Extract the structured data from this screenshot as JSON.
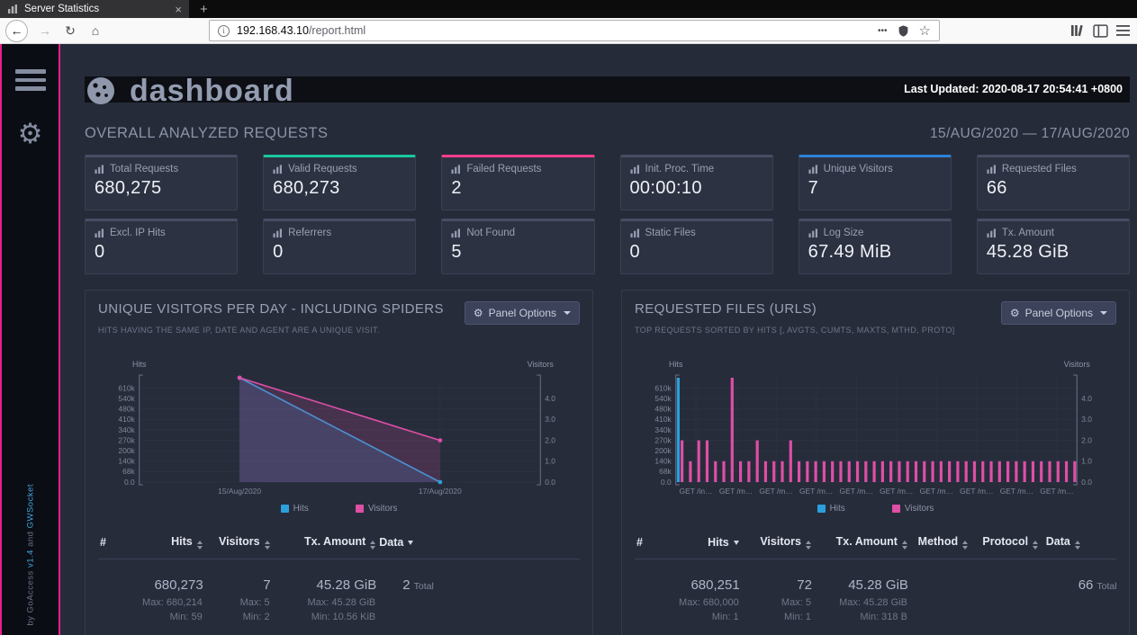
{
  "browser": {
    "tab": {
      "title": "Server Statistics",
      "close": "×",
      "new_tab": "+"
    },
    "nav": {
      "back": "←",
      "forward": "→",
      "reload": "↻",
      "home": "⌂",
      "url_host": "192.168.43.10",
      "url_path": "/report.html",
      "page_actions": "•••",
      "star": "☆"
    }
  },
  "sidebar": {
    "credit_prefix": "by GoAccess ",
    "credit_version": "v1.4",
    "credit_and": " and ",
    "credit_socket": "GWSocket"
  },
  "header": {
    "title": "dashboard",
    "last_updated": "Last Updated: 2020-08-17 20:54:41 +0800"
  },
  "overview": {
    "title": "OVERALL ANALYZED REQUESTS",
    "date_range": "15/AUG/2020 — 17/AUG/2020",
    "cards": [
      {
        "label": "Total Requests",
        "value": "680,275",
        "accent": ""
      },
      {
        "label": "Valid Requests",
        "value": "680,273",
        "accent": "#17c7a0"
      },
      {
        "label": "Failed Requests",
        "value": "2",
        "accent": "#f53d8f"
      },
      {
        "label": "Init. Proc. Time",
        "value": "00:00:10",
        "accent": ""
      },
      {
        "label": "Unique Visitors",
        "value": "7",
        "accent": "#2d82d8"
      },
      {
        "label": "Requested Files",
        "value": "66",
        "accent": ""
      },
      {
        "label": "Excl. IP Hits",
        "value": "0",
        "accent": ""
      },
      {
        "label": "Referrers",
        "value": "0",
        "accent": ""
      },
      {
        "label": "Not Found",
        "value": "5",
        "accent": ""
      },
      {
        "label": "Static Files",
        "value": "0",
        "accent": ""
      },
      {
        "label": "Log Size",
        "value": "67.49 MiB",
        "accent": ""
      },
      {
        "label": "Tx. Amount",
        "value": "45.28 GiB",
        "accent": ""
      }
    ]
  },
  "panels": {
    "visitors": {
      "title": "UNIQUE VISITORS PER DAY - INCLUDING SPIDERS",
      "subtitle": "HITS HAVING THE SAME IP, DATE AND AGENT ARE A UNIQUE VISIT.",
      "options_label": "Panel Options",
      "legend": [
        "Hits",
        "Visitors"
      ],
      "table": {
        "col_hash": "#",
        "col_hits": "Hits",
        "col_visitors": "Visitors",
        "col_tx": "Tx. Amount",
        "col_data": "Data",
        "footer": {
          "hits": "680,273",
          "visitors": "7",
          "tx": "45.28 GiB",
          "count": "2",
          "total": "Total"
        },
        "max": {
          "hits": "Max: 680,214",
          "visitors": "Max: 5",
          "tx": "Max: 45.28 GiB"
        },
        "min": {
          "hits": "Min: 59",
          "visitors": "Min: 2",
          "tx": "Min: 10.56 KiB"
        }
      }
    },
    "requests": {
      "title": "REQUESTED FILES (URLS)",
      "subtitle": "TOP REQUESTS SORTED BY HITS [, AVGTS, CUMTS, MAXTS, MTHD, PROTO]",
      "options_label": "Panel Options",
      "legend": [
        "Hits",
        "Visitors"
      ],
      "table": {
        "col_hash": "#",
        "col_hits": "Hits",
        "col_visitors": "Visitors",
        "col_tx": "Tx. Amount",
        "col_method": "Method",
        "col_protocol": "Protocol",
        "col_data": "Data",
        "footer": {
          "hits": "680,251",
          "visitors": "72",
          "tx": "45.28 GiB",
          "count": "66",
          "total": "Total"
        },
        "max": {
          "hits": "Max: 680,000",
          "visitors": "Max: 5",
          "tx": "Max: 45.28 GiB"
        },
        "min": {
          "hits": "Min: 1",
          "visitors": "Min: 1",
          "tx": "Min: 318 B"
        }
      }
    }
  },
  "chart_data": [
    {
      "id": "visitors-per-day",
      "type": "line",
      "title": "Unique Visitors per Day - Including Spiders",
      "x_labels": [
        "15/Aug/2020",
        "17/Aug/2020"
      ],
      "series": [
        {
          "name": "Hits",
          "axis": "left",
          "color": "#2ba0dc",
          "values": [
            680214,
            59
          ]
        },
        {
          "name": "Visitors",
          "axis": "right",
          "color": "#de4fa6",
          "values": [
            5,
            2
          ]
        }
      ],
      "left_axis": {
        "label": "Hits",
        "max": 680000,
        "ticks": [
          {
            "v": 0,
            "l": "0.0"
          },
          {
            "v": 68000,
            "l": "68k"
          },
          {
            "v": 136000,
            "l": "140k"
          },
          {
            "v": 204000,
            "l": "200k"
          },
          {
            "v": 272000,
            "l": "270k"
          },
          {
            "v": 340000,
            "l": "340k"
          },
          {
            "v": 408000,
            "l": "410k"
          },
          {
            "v": 476000,
            "l": "480k"
          },
          {
            "v": 544000,
            "l": "540k"
          },
          {
            "v": 612000,
            "l": "610k"
          }
        ]
      },
      "right_axis": {
        "label": "Visitors",
        "max": 5,
        "ticks": [
          {
            "v": 0,
            "l": "0.0"
          },
          {
            "v": 1,
            "l": "1.0"
          },
          {
            "v": 2,
            "l": "2.0"
          },
          {
            "v": 3,
            "l": "3.0"
          },
          {
            "v": 4,
            "l": "4.0"
          }
        ]
      },
      "grid": true,
      "legend_position": "bottom"
    },
    {
      "id": "requested-files",
      "type": "bar",
      "title": "Requested Files (URLs)",
      "x_labels": [
        "GET /in…",
        "GET /m…",
        "GET /m…",
        "GET /m…",
        "GET /m…",
        "GET /m…",
        "GET /m…",
        "GET /m…",
        "GET /m…",
        "GET /m…"
      ],
      "series": [
        {
          "name": "Hits",
          "axis": "left",
          "color": "#2ba0dc",
          "values": [
            680000,
            30,
            22,
            18,
            15,
            12,
            10,
            9,
            8,
            8,
            7,
            7,
            6,
            6,
            5,
            5,
            5,
            4,
            4,
            4,
            4,
            3,
            3,
            3,
            3,
            3,
            2,
            2,
            2,
            2,
            2,
            2,
            2,
            2,
            1,
            1,
            1,
            1,
            1,
            1,
            1,
            1,
            1,
            1,
            1,
            1,
            1,
            1
          ]
        },
        {
          "name": "Visitors",
          "axis": "right",
          "color": "#de4fa6",
          "values": [
            2,
            1,
            2,
            2,
            1,
            1,
            5,
            1,
            1,
            2,
            1,
            1,
            1,
            2,
            1,
            1,
            1,
            1,
            1,
            1,
            1,
            1,
            1,
            1,
            1,
            1,
            1,
            1,
            1,
            1,
            1,
            1,
            1,
            1,
            1,
            1,
            1,
            1,
            1,
            1,
            1,
            1,
            1,
            1,
            1,
            1,
            1,
            1
          ]
        }
      ],
      "left_axis": {
        "label": "Hits",
        "max": 680000,
        "ticks": [
          {
            "v": 0,
            "l": "0.0"
          },
          {
            "v": 68000,
            "l": "68k"
          },
          {
            "v": 136000,
            "l": "140k"
          },
          {
            "v": 204000,
            "l": "200k"
          },
          {
            "v": 272000,
            "l": "270k"
          },
          {
            "v": 340000,
            "l": "340k"
          },
          {
            "v": 408000,
            "l": "410k"
          },
          {
            "v": 476000,
            "l": "480k"
          },
          {
            "v": 544000,
            "l": "540k"
          },
          {
            "v": 612000,
            "l": "610k"
          }
        ]
      },
      "right_axis": {
        "label": "Visitors",
        "max": 5,
        "ticks": [
          {
            "v": 0,
            "l": "0.0"
          },
          {
            "v": 1,
            "l": "1.0"
          },
          {
            "v": 2,
            "l": "2.0"
          },
          {
            "v": 3,
            "l": "3.0"
          },
          {
            "v": 4,
            "l": "4.0"
          }
        ]
      },
      "grid": true,
      "legend_position": "bottom"
    }
  ]
}
